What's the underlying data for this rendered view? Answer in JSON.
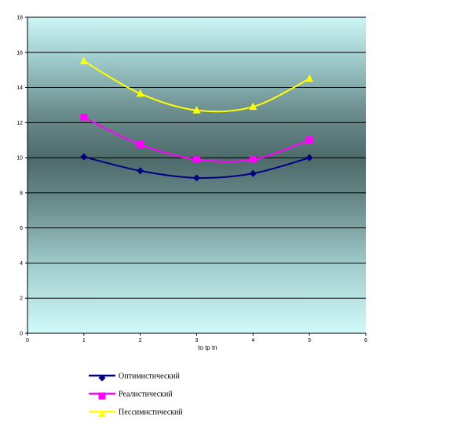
{
  "chart_data": {
    "type": "line",
    "xlabel": "to tp tn",
    "ylabel": "",
    "xlim": [
      0,
      6
    ],
    "ylim": [
      0,
      18
    ],
    "xticks": [
      0,
      1,
      2,
      3,
      4,
      5,
      6
    ],
    "yticks": [
      0,
      2,
      4,
      6,
      8,
      10,
      12,
      14,
      16,
      18
    ],
    "grid": "horizontal",
    "legend_position": "bottom-left",
    "series": [
      {
        "name": "Оптимистический",
        "color": "#000080",
        "marker": "diamond",
        "x": [
          1,
          2,
          3,
          4,
          5
        ],
        "values": [
          10.05,
          9.25,
          8.85,
          9.1,
          10.0
        ]
      },
      {
        "name": "Реалистический",
        "color": "#ff00ff",
        "marker": "square",
        "x": [
          1,
          2,
          3,
          4,
          5
        ],
        "values": [
          12.3,
          10.75,
          9.9,
          9.9,
          11.0
        ]
      },
      {
        "name": "Пессимистический",
        "color": "#ffff00",
        "marker": "triangle",
        "x": [
          1,
          2,
          3,
          4,
          5
        ],
        "values": [
          15.5,
          13.65,
          12.7,
          12.9,
          14.5
        ]
      }
    ]
  }
}
